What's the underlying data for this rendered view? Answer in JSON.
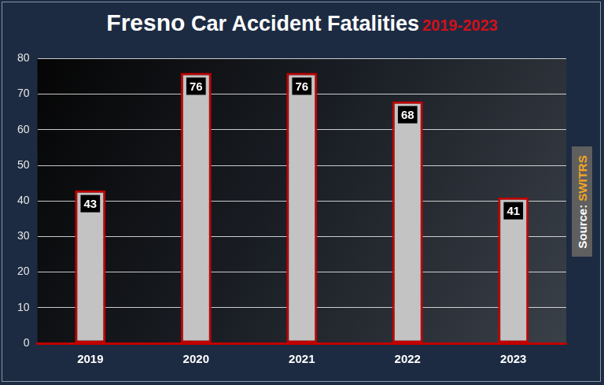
{
  "chart_data": {
    "type": "bar",
    "title": "Fresno Car Accident Fatalities",
    "subtitle": "2019-2023",
    "categories": [
      "2019",
      "2020",
      "2021",
      "2022",
      "2023"
    ],
    "values": [
      43,
      76,
      76,
      68,
      41
    ],
    "color": "#c3c3c3",
    "ylim": [
      0,
      80
    ],
    "yticks": [
      0,
      10,
      20,
      30,
      40,
      50,
      60,
      70,
      80
    ],
    "grid": true,
    "data_labels": true,
    "annotations": [
      "Source: SWITRS"
    ]
  }
}
